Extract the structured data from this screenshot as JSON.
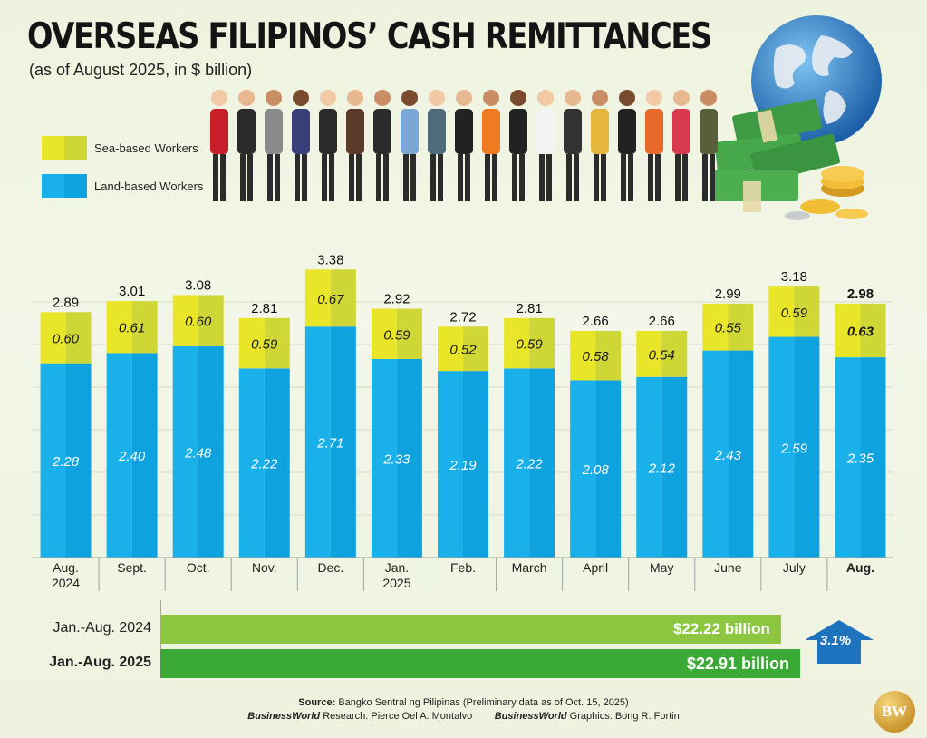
{
  "header": {
    "title": "OVERSEAS FILIPINOS’ CASH REMITTANCES",
    "subtitle": "(as of August 2025, in $ billion)"
  },
  "legend": {
    "sea": "Sea-based Workers",
    "land": "Land-based Workers"
  },
  "colors": {
    "land": "#1ab0ea",
    "land_dark": "#0ea3df",
    "sea": "#e9e62a",
    "sea_dark": "#cfd737",
    "bar_2024": "#8dc641",
    "bar_2025": "#3aa935",
    "growth_arrow": "#1e73be"
  },
  "chart_data": {
    "type": "bar",
    "stacked": true,
    "categories": [
      [
        "Aug.",
        "2024"
      ],
      [
        "Sept."
      ],
      [
        "Oct."
      ],
      [
        "Nov."
      ],
      [
        "Dec."
      ],
      [
        "Jan.",
        "2025"
      ],
      [
        "Feb."
      ],
      [
        "March"
      ],
      [
        "April"
      ],
      [
        "May"
      ],
      [
        "June"
      ],
      [
        "July"
      ],
      [
        "Aug."
      ]
    ],
    "series": [
      {
        "name": "Land-based Workers",
        "values": [
          2.28,
          2.4,
          2.48,
          2.22,
          2.71,
          2.33,
          2.19,
          2.22,
          2.08,
          2.12,
          2.43,
          2.59,
          2.35
        ]
      },
      {
        "name": "Sea-based Workers",
        "values": [
          0.6,
          0.61,
          0.6,
          0.59,
          0.67,
          0.59,
          0.52,
          0.59,
          0.58,
          0.54,
          0.55,
          0.59,
          0.63
        ]
      }
    ],
    "totals": [
      2.89,
      3.01,
      3.08,
      2.81,
      3.38,
      2.92,
      2.72,
      2.81,
      2.66,
      2.66,
      2.99,
      3.18,
      2.98
    ],
    "highlight_last": true,
    "title": "",
    "xlabel": "",
    "ylabel": ""
  },
  "summary": {
    "rows": [
      {
        "label": "Jan.-Aug. 2024",
        "value": 22.22,
        "value_label": "$22.22 billion",
        "bold": false
      },
      {
        "label": "Jan.-Aug. 2025",
        "value": 22.91,
        "value_label": "$22.91 billion",
        "bold": true
      }
    ],
    "growth": "3.1%"
  },
  "footer": {
    "source_label": "Source:",
    "source": "Bangko Sentral ng Pilipinas (Preliminary data as of Oct. 15, 2025)",
    "research_brand": "BusinessWorld",
    "research_label": "Research:",
    "research_name": "Pierce Oel A. Montalvo",
    "graphics_brand": "BusinessWorld",
    "graphics_label": "Graphics:",
    "graphics_name": "Bong R. Fortin",
    "logo": "BW"
  }
}
